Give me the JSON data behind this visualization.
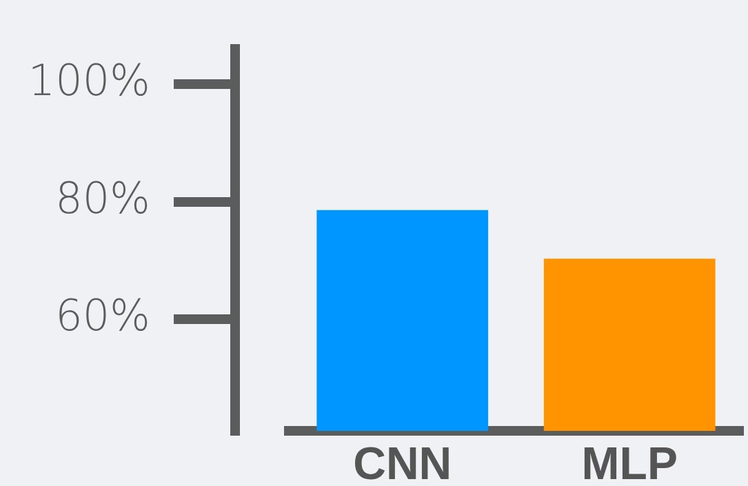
{
  "chart_data": {
    "type": "bar",
    "categories": [
      "CNN",
      "MLP"
    ],
    "series": [
      {
        "color": "#0096ff",
        "values": [
          78.6,
          null
        ]
      },
      {
        "color": "#ff9300",
        "values": [
          null,
          70.3
        ]
      }
    ],
    "stacked": true,
    "ylim": [
      41,
      106
    ],
    "yticks": [
      {
        "value": 60,
        "label": "60%"
      },
      {
        "value": 80,
        "label": "80%"
      },
      {
        "value": 100,
        "label": "100%"
      }
    ],
    "grid": false,
    "legend": false
  }
}
